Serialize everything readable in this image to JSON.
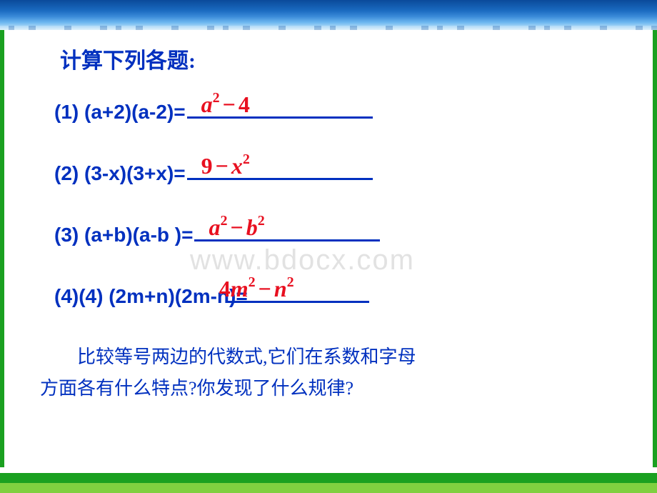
{
  "colors": {
    "text_blue": "#0030bf",
    "answer_red": "#e81020",
    "border_green": "#1aa020",
    "light_green": "#7fd040",
    "underline": "#0030bf",
    "watermark": "#e2e2e2"
  },
  "heading": "计算下列各题:",
  "watermark": "www.bdocx.com",
  "problems": [
    {
      "lhs": "(1) (a+2)(a-2)=",
      "answer_html": "a<sup>2</sup><span class='op'>−</span><span class='num'>4</span>"
    },
    {
      "lhs": "(2) (3-x)(3+x)=",
      "answer_html": "<span class='num'>9</span><span class='op'>−</span>x<sup>2</sup>"
    },
    {
      "lhs": "(3) (a+b)(a-b )=",
      "answer_html": "a<sup>2</sup><span class='op'>−</span>b<sup>2</sup>"
    },
    {
      "lhs": "(4)(4)  (2m+n)(2m-n)=",
      "answer_html": "<span class='num'>4</span>m<sup>2</sup><span class='op'>−</span>n<sup>2</sup>"
    }
  ],
  "footer": {
    "line1": "比较等号两边的代数式,它们在系数和字母",
    "line2": "方面各有什么特点?你发现了什么规律?"
  }
}
